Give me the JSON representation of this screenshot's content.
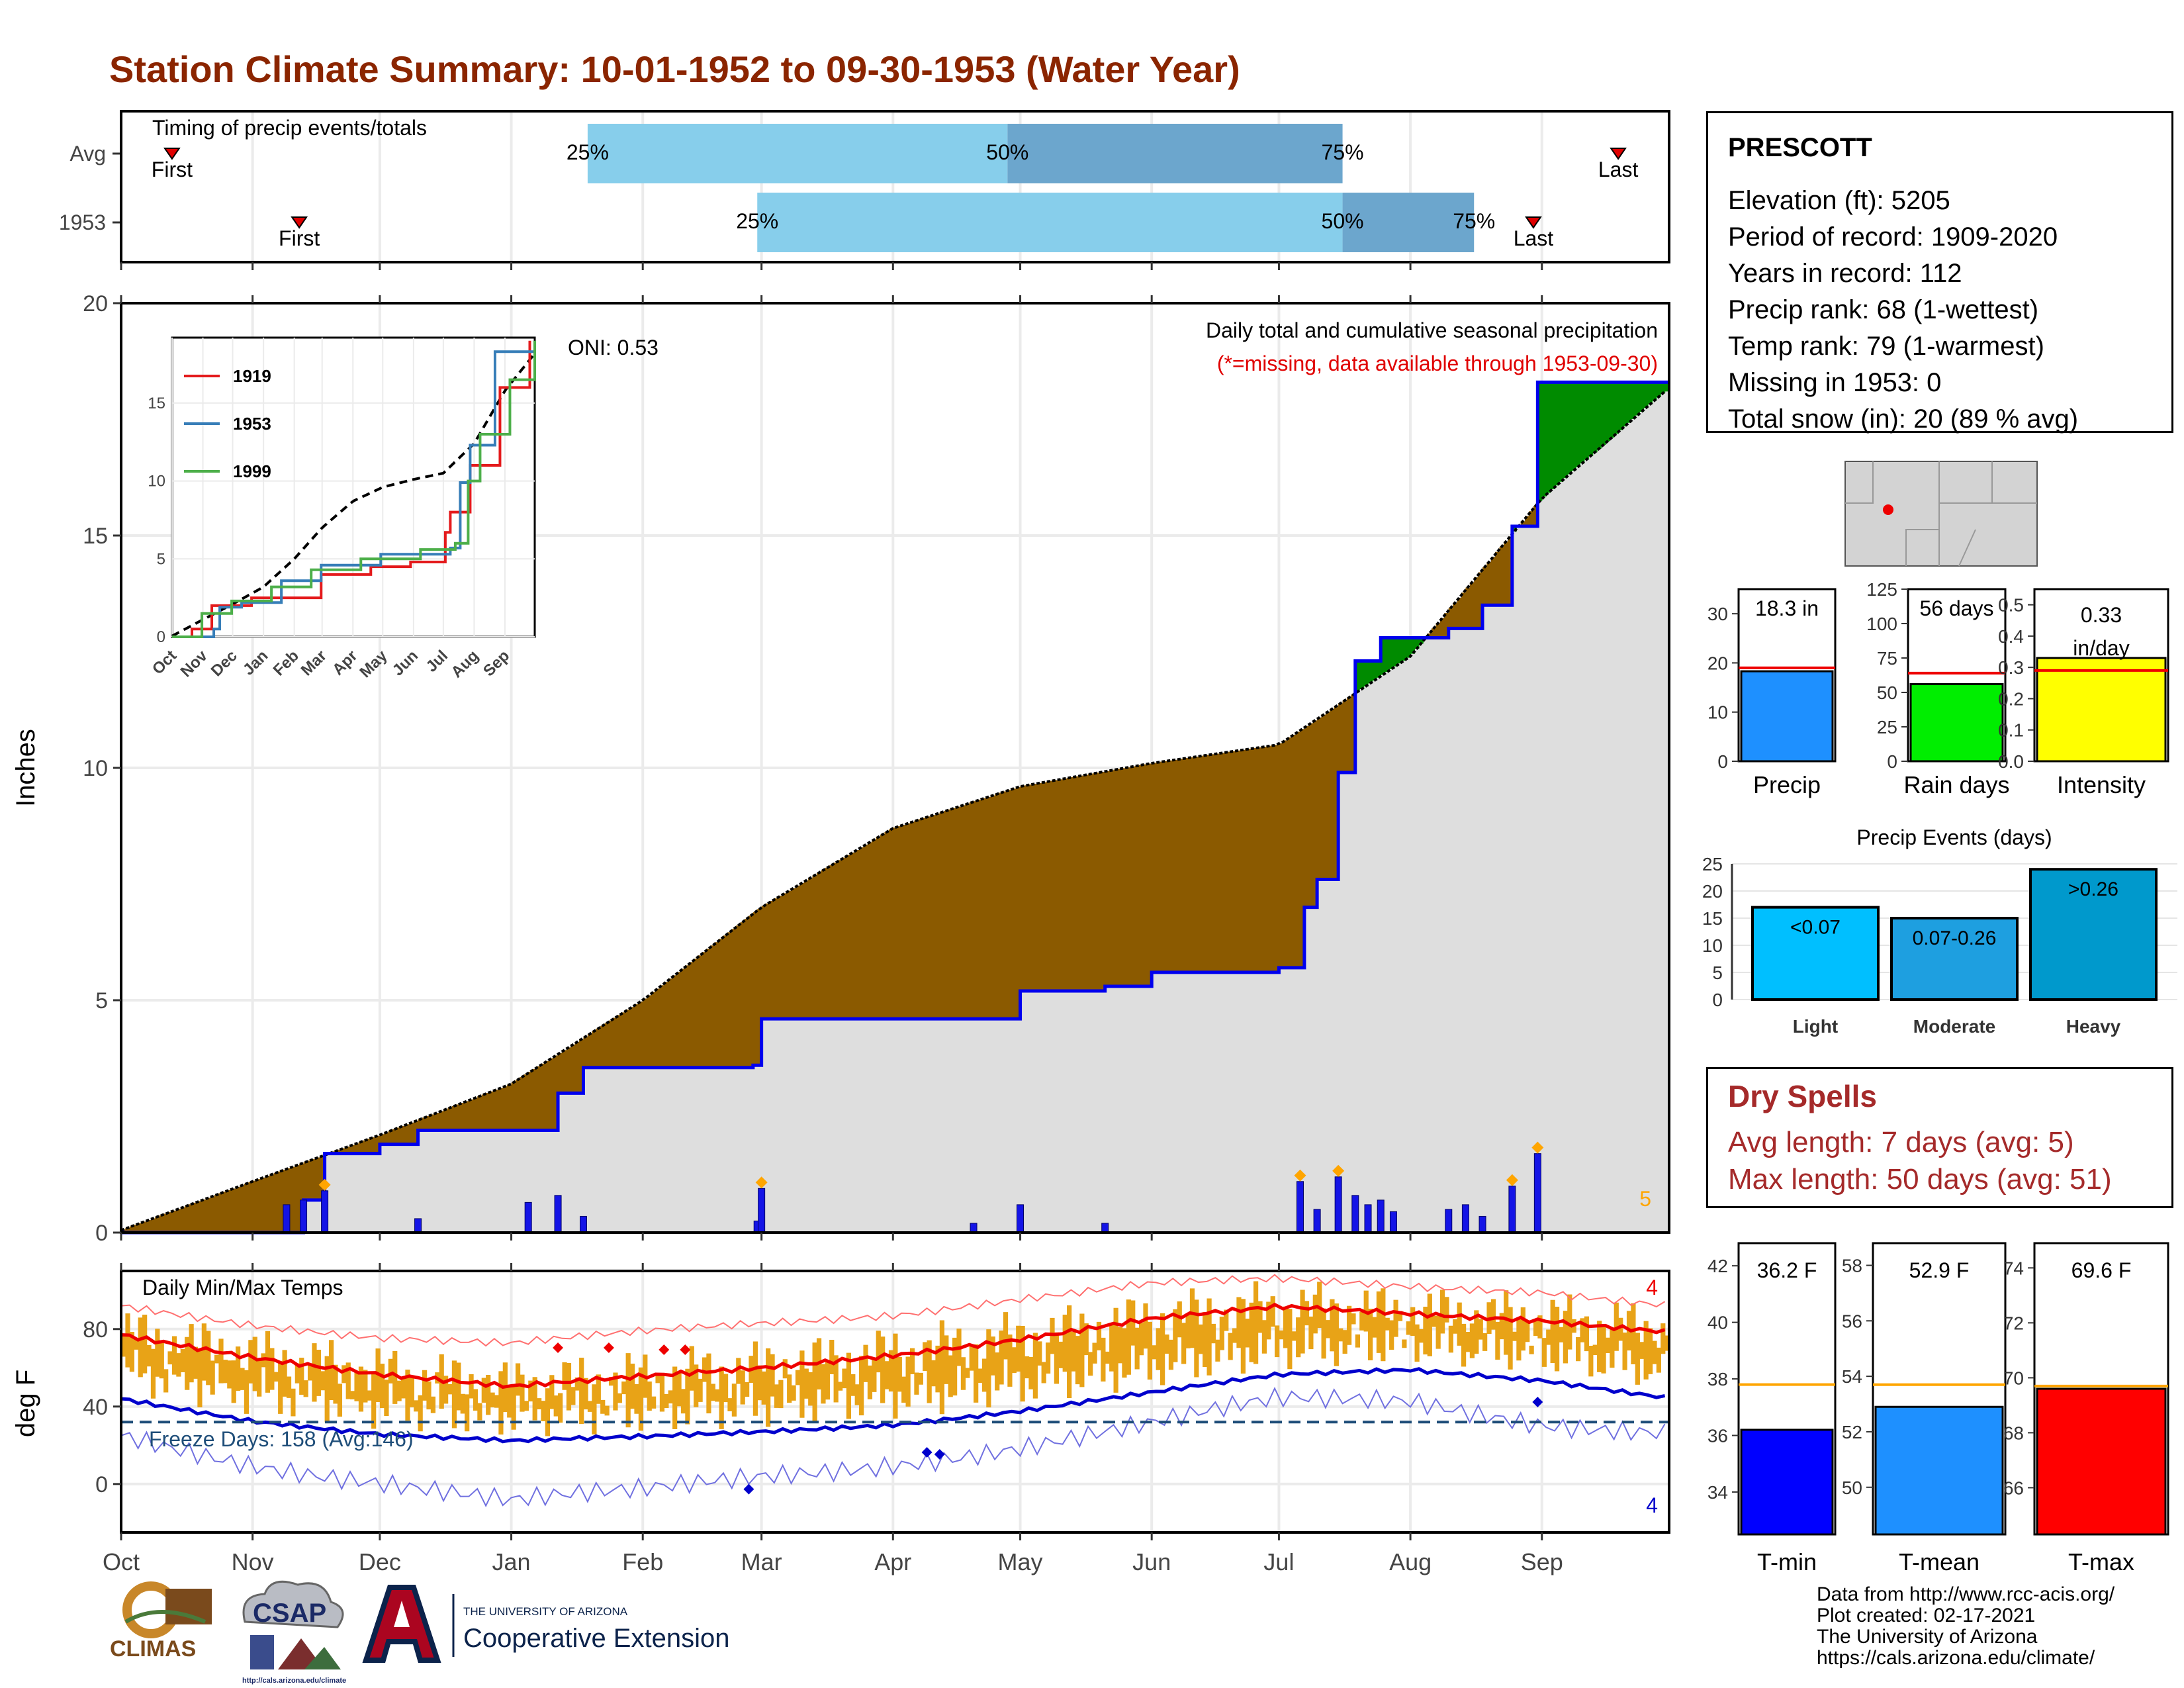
{
  "title": "Station Climate Summary: 10-01-1952 to 09-30-1953 (Water Year)",
  "timing": {
    "label": "Timing of precip events/totals",
    "rows": [
      {
        "name": "Avg",
        "first_date": "1952-10-13",
        "p25_date": "1953-01-19",
        "p50_date": "1953-04-28",
        "p75_date": "1953-07-16",
        "last_date": "1953-09-19"
      },
      {
        "name": "1953",
        "first_date": "1952-11-12",
        "p25_date": "1953-02-28",
        "p50_date": "1953-07-16",
        "p75_date": "1953-08-16",
        "last_date": "1953-08-30"
      }
    ],
    "first_label": "First",
    "last_label": "Last",
    "pct_labels": [
      "25%",
      "50%",
      "75%"
    ],
    "colors": {
      "q1": "#87CEEB",
      "q2": "#6CA6CD",
      "marker": "#E00000"
    }
  },
  "precip_panel": {
    "ylabel": "Inches",
    "note1": "Daily total and cumulative seasonal precipitation",
    "note2": "(*=missing, data available through 1953-09-30)",
    "oni": "ONI: 0.53",
    "count_label": "5",
    "colors": {
      "above_avg": "#8B5A00",
      "below_avg": "#008B00",
      "background": "#DEDEDE",
      "line": "#0000EE",
      "daily_bar": "#1414E6",
      "extreme": "#FFA500",
      "note2": "#E00000",
      "count": "#FFA500"
    }
  },
  "inset": {
    "legend": [
      "1919",
      "1953",
      "1999"
    ],
    "month_labels": [
      "Oct",
      "Nov",
      "Dec",
      "Jan",
      "Feb",
      "Mar",
      "Apr",
      "May",
      "Jun",
      "Jul",
      "Aug",
      "Sep"
    ],
    "colors": {
      "1919": "#E41A1C",
      "1953": "#377EB8",
      "1999": "#4DAF4A"
    }
  },
  "temp_panel": {
    "ylabel": "deg F",
    "title": "Daily Min/Max Temps",
    "freeze": "Freeze Days: 158 (Avg:146)",
    "count_max": "4",
    "count_min": "4",
    "colors": {
      "band": "#E8A317",
      "max_line": "#EE0000",
      "min_line": "#0000CC",
      "freeze_line": "#1F4E79"
    }
  },
  "month_axis": [
    "Oct",
    "Nov",
    "Dec",
    "Jan",
    "Feb",
    "Mar",
    "Apr",
    "May",
    "Jun",
    "Jul",
    "Aug",
    "Sep"
  ],
  "station": {
    "name": "PRESCOTT",
    "lines": [
      "Elevation (ft): 5205",
      "Period of record: 1909-2020",
      "Years in record: 112",
      "Precip rank: 68 (1-wettest)",
      "Temp rank: 79 (1-warmest)",
      "Missing in 1953: 0",
      "Total snow (in): 20 (89 % avg)"
    ]
  },
  "summary_bars": [
    {
      "label": "Precip",
      "value": 18.3,
      "avg": 19.0,
      "text": "18.3 in",
      "color": "#1E90FF",
      "ylim": [
        0,
        35
      ],
      "ticks": [
        0,
        10,
        20,
        30
      ]
    },
    {
      "label": "Rain days",
      "value": 56,
      "avg": 64,
      "text": "56 days",
      "color": "#00EE00",
      "ylim": [
        0,
        125
      ],
      "ticks": [
        0,
        25,
        50,
        75,
        100,
        125
      ]
    },
    {
      "label": "Intensity",
      "value": 0.33,
      "avg": 0.29,
      "text": "0.33 in/day",
      "color": "#FFFF00",
      "ylim": [
        0,
        0.55
      ],
      "ticks": [
        0.0,
        0.1,
        0.2,
        0.3,
        0.4,
        0.5
      ]
    }
  ],
  "precip_events": {
    "title": "Precip Events (days)",
    "categories": [
      "Light",
      "Moderate",
      "Heavy"
    ],
    "labels": [
      "<0.07",
      "0.07-0.26",
      ">0.26"
    ],
    "values": [
      17,
      15,
      24
    ],
    "colors": [
      "#00BFFF",
      "#1E9FE0",
      "#0099CC"
    ],
    "ticks": [
      0,
      5,
      10,
      15,
      20,
      25
    ]
  },
  "dry_spells": {
    "title": "Dry Spells",
    "lines": [
      "Avg length: 7 days (avg: 5)",
      "Max length: 50 days (avg: 51)"
    ]
  },
  "temp_bars": [
    {
      "label": "T-min",
      "value": 36.2,
      "avg": 37.8,
      "text": "36.2 F",
      "color": "#0000FF",
      "ylim": [
        32.5,
        42.8
      ],
      "ticks": [
        34,
        36,
        38,
        40,
        42
      ]
    },
    {
      "label": "T-mean",
      "value": 52.9,
      "avg": 53.7,
      "text": "52.9 F",
      "color": "#1E90FF",
      "ylim": [
        48.3,
        58.8
      ],
      "ticks": [
        50,
        52,
        54,
        56,
        58
      ]
    },
    {
      "label": "T-max",
      "value": 69.6,
      "avg": 69.7,
      "text": "69.6 F",
      "color": "#FF0000",
      "ylim": [
        64.3,
        74.9
      ],
      "ticks": [
        66,
        68,
        70,
        72,
        74
      ]
    }
  ],
  "credits": [
    "Data from http://www.rcc-acis.org/",
    "Plot created: 02-17-2021",
    "The University of Arizona",
    "https://cals.arizona.edu/climate/"
  ],
  "logos": {
    "climas": "CLIMAS",
    "csap": "CSAP",
    "ua_small": "THE UNIVERSITY OF ARIZONA",
    "ua_big": "Cooperative Extension",
    "csap_url": "http://cals.arizona.edu/climate"
  },
  "chart_data": [
    {
      "type": "area",
      "title": "Daily total and cumulative seasonal precipitation",
      "ylabel": "Inches",
      "ylim": [
        0,
        20
      ],
      "x_unit": "date",
      "series": [
        {
          "name": "1953",
          "points": [
            [
              "1952-10-01",
              0
            ],
            [
              "1952-11-12",
              0
            ],
            [
              "1952-11-13",
              0.7
            ],
            [
              "1952-11-18",
              1.7
            ],
            [
              "1952-12-01",
              1.9
            ],
            [
              "1952-12-10",
              2.2
            ],
            [
              "1953-01-01",
              2.2
            ],
            [
              "1953-01-12",
              3.0
            ],
            [
              "1953-01-18",
              3.55
            ],
            [
              "1953-02-27",
              3.6
            ],
            [
              "1953-03-01",
              4.6
            ],
            [
              "1953-04-20",
              4.6
            ],
            [
              "1953-05-01",
              5.2
            ],
            [
              "1953-05-21",
              5.3
            ],
            [
              "1953-06-01",
              5.6
            ],
            [
              "1953-07-01",
              5.7
            ],
            [
              "1953-07-07",
              7.0
            ],
            [
              "1953-07-10",
              7.6
            ],
            [
              "1953-07-15",
              9.9
            ],
            [
              "1953-07-19",
              12.3
            ],
            [
              "1953-07-25",
              12.8
            ],
            [
              "1953-08-10",
              13.0
            ],
            [
              "1953-08-18",
              13.5
            ],
            [
              "1953-08-25",
              15.2
            ],
            [
              "1953-08-31",
              18.3
            ],
            [
              "1953-09-30",
              18.3
            ]
          ]
        },
        {
          "name": "Average",
          "points": [
            [
              "1952-10-01",
              0.05
            ],
            [
              "1952-11-01",
              1.1
            ],
            [
              "1952-12-01",
              2.1
            ],
            [
              "1953-01-01",
              3.2
            ],
            [
              "1953-02-01",
              5.0
            ],
            [
              "1953-03-01",
              7.0
            ],
            [
              "1953-04-01",
              8.7
            ],
            [
              "1953-05-01",
              9.6
            ],
            [
              "1953-06-01",
              10.1
            ],
            [
              "1953-07-01",
              10.5
            ],
            [
              "1953-08-01",
              12.4
            ],
            [
              "1953-09-01",
              15.8
            ],
            [
              "1953-09-30",
              18.1
            ]
          ]
        }
      ],
      "daily": [
        [
          "1952-11-09",
          0.6
        ],
        [
          "1952-11-13",
          0.7
        ],
        [
          "1952-11-18",
          0.9
        ],
        [
          "1952-12-10",
          0.3
        ],
        [
          "1953-01-05",
          0.65
        ],
        [
          "1953-01-12",
          0.8
        ],
        [
          "1953-01-18",
          0.35
        ],
        [
          "1953-02-28",
          0.25
        ],
        [
          "1953-03-01",
          0.95
        ],
        [
          "1953-04-20",
          0.2
        ],
        [
          "1953-05-01",
          0.6
        ],
        [
          "1953-05-21",
          0.2
        ],
        [
          "1953-07-06",
          1.1
        ],
        [
          "1953-07-10",
          0.5
        ],
        [
          "1953-07-15",
          1.2
        ],
        [
          "1953-07-19",
          0.8
        ],
        [
          "1953-07-22",
          0.6
        ],
        [
          "1953-07-25",
          0.7
        ],
        [
          "1953-07-28",
          0.45
        ],
        [
          "1953-08-10",
          0.5
        ],
        [
          "1953-08-14",
          0.6
        ],
        [
          "1953-08-18",
          0.35
        ],
        [
          "1953-08-25",
          1.0
        ],
        [
          "1953-08-31",
          1.7
        ]
      ]
    },
    {
      "type": "line",
      "title": "Daily Min/Max Temps",
      "ylabel": "deg F",
      "ylim": [
        -25,
        110
      ],
      "x_unit": "date",
      "series": [
        {
          "name": "avg_max",
          "points": [
            [
              "1952-10-01",
              77
            ],
            [
              "1952-11-01",
              66
            ],
            [
              "1952-12-01",
              57
            ],
            [
              "1953-01-01",
              50
            ],
            [
              "1953-02-01",
              55
            ],
            [
              "1953-03-01",
              60
            ],
            [
              "1953-04-01",
              67
            ],
            [
              "1953-05-01",
              75
            ],
            [
              "1953-06-01",
              85
            ],
            [
              "1953-07-01",
              91
            ],
            [
              "1953-08-01",
              88
            ],
            [
              "1953-09-01",
              85
            ],
            [
              "1953-09-30",
              79
            ]
          ]
        },
        {
          "name": "avg_min",
          "points": [
            [
              "1952-10-01",
              44
            ],
            [
              "1952-11-01",
              33
            ],
            [
              "1952-12-01",
              26
            ],
            [
              "1953-01-01",
              22
            ],
            [
              "1953-02-01",
              24
            ],
            [
              "1953-03-01",
              27
            ],
            [
              "1953-04-01",
              31
            ],
            [
              "1953-05-01",
              38
            ],
            [
              "1953-06-01",
              47
            ],
            [
              "1953-07-01",
              56
            ],
            [
              "1953-08-01",
              59
            ],
            [
              "1953-09-01",
              54
            ],
            [
              "1953-09-30",
              45
            ]
          ]
        },
        {
          "name": "record_max",
          "points": [
            [
              "1952-10-01",
              92
            ],
            [
              "1952-11-01",
              83
            ],
            [
              "1952-12-01",
              76
            ],
            [
              "1953-01-01",
              72
            ],
            [
              "1953-02-01",
              78
            ],
            [
              "1953-03-01",
              83
            ],
            [
              "1953-04-01",
              88
            ],
            [
              "1953-05-01",
              96
            ],
            [
              "1953-06-01",
              103
            ],
            [
              "1953-07-01",
              105
            ],
            [
              "1953-08-01",
              102
            ],
            [
              "1953-09-01",
              100
            ],
            [
              "1953-09-30",
              93
            ]
          ]
        },
        {
          "name": "record_min",
          "points": [
            [
              "1952-10-01",
              25
            ],
            [
              "1952-11-01",
              12
            ],
            [
              "1952-12-01",
              2
            ],
            [
              "1953-01-01",
              -10
            ],
            [
              "1953-02-01",
              -5
            ],
            [
              "1953-03-01",
              4
            ],
            [
              "1953-04-01",
              12
            ],
            [
              "1953-05-01",
              20
            ],
            [
              "1953-06-01",
              30
            ],
            [
              "1953-07-01",
              42
            ],
            [
              "1953-08-01",
              43
            ],
            [
              "1953-09-01",
              33
            ],
            [
              "1953-09-30",
              28
            ]
          ]
        }
      ],
      "freeze_threshold": 32
    }
  ]
}
